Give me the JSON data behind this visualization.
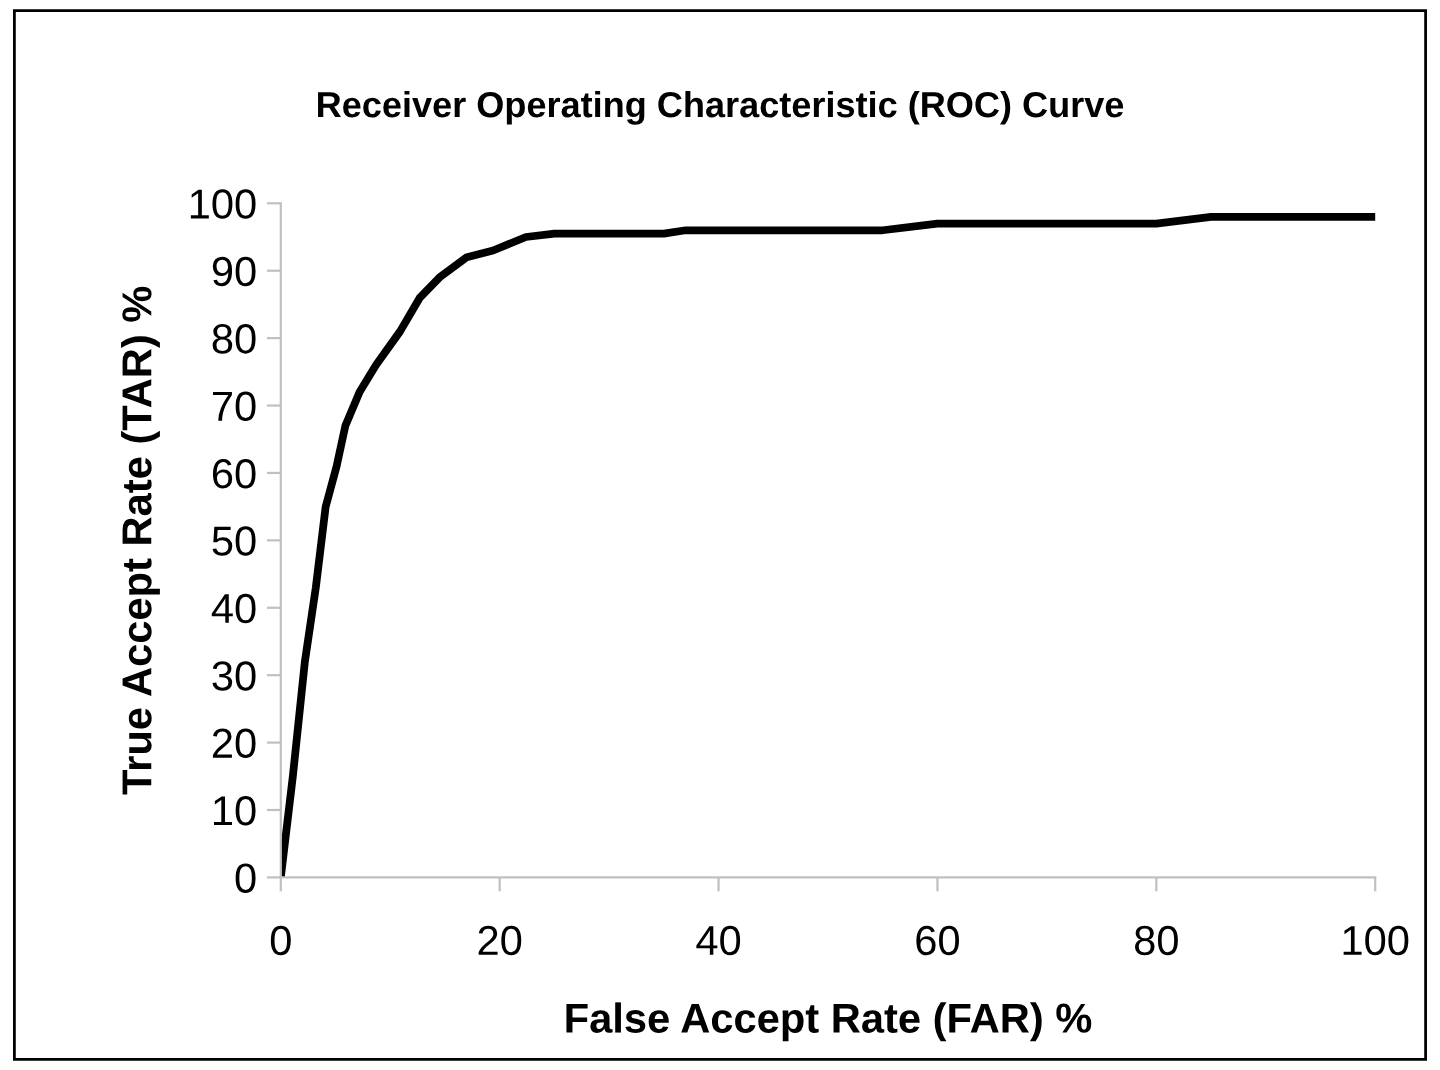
{
  "chart_data": {
    "type": "line",
    "title": "Receiver Operating Characteristic (ROC) Curve",
    "xlabel": "False Accept Rate (FAR) %",
    "ylabel": "True Accept Rate (TAR) %",
    "series": [
      {
        "color": "#000000",
        "x": [
          0,
          1.1,
          2.2,
          3.2,
          4.1,
          5.1,
          5.9,
          7.2,
          8.7,
          10.9,
          12.7,
          14.5,
          17,
          19.4,
          22.4,
          25,
          35,
          37,
          55,
          60,
          80,
          85,
          100
        ],
        "values": [
          0,
          15,
          32,
          43,
          55,
          61,
          67,
          72,
          76,
          81,
          86,
          89,
          92,
          93,
          95,
          95.5,
          95.5,
          96,
          96,
          97,
          97,
          98,
          98
        ]
      }
    ],
    "xlim": [
      0,
      100
    ],
    "ylim": [
      0,
      100
    ],
    "xticks": [
      0,
      20,
      40,
      60,
      80,
      100
    ],
    "yticks": [
      0,
      10,
      20,
      30,
      40,
      50,
      60,
      70,
      80,
      90,
      100
    ],
    "grid": false,
    "legend": false,
    "marker": "none",
    "line_style": "solid"
  }
}
